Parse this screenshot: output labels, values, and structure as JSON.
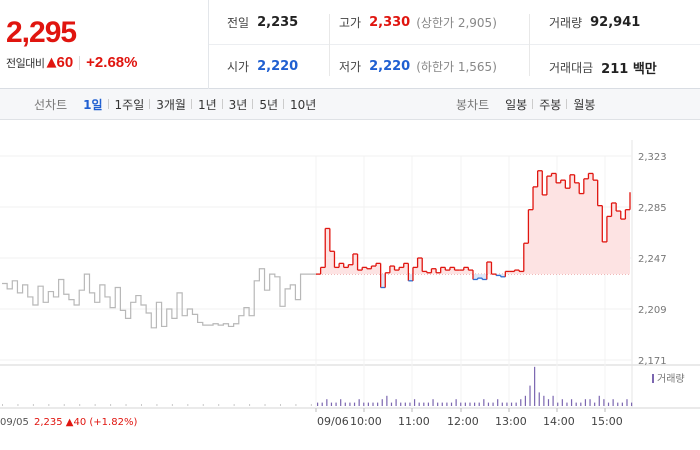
{
  "quote": {
    "current_price": "2,295",
    "change_label": "전일대비",
    "change_arrow": "▲",
    "change_value": "60",
    "change_pct": "+2.68%"
  },
  "stats": {
    "prev_close": {
      "label": "전일",
      "value": "2,235"
    },
    "high": {
      "label": "고가",
      "value": "2,330",
      "extra": "(상한가 2,905)"
    },
    "volume": {
      "label": "거래량",
      "value": "92,941"
    },
    "open": {
      "label": "시가",
      "value": "2,220"
    },
    "low": {
      "label": "저가",
      "value": "2,220",
      "extra": "(하한가 1,565)"
    },
    "trade_amount": {
      "label": "거래대금",
      "value": "211 백만"
    }
  },
  "tabs": {
    "line_label": "선차트",
    "line_periods": [
      "1일",
      "1주일",
      "3개월",
      "1년",
      "3년",
      "5년",
      "10년"
    ],
    "line_active": "1일",
    "candle_label": "봉차트",
    "candle_periods": [
      "일봉",
      "주봉",
      "월봉"
    ]
  },
  "chart_data": {
    "type": "line",
    "price_axis_ticks": [
      "2,323",
      "2,285",
      "2,247",
      "2,209",
      "2,171"
    ],
    "price_axis_values": [
      2323,
      2285,
      2247,
      2209,
      2171
    ],
    "time_labels": [
      "09/06",
      "10:00",
      "11:00",
      "12:00",
      "13:00",
      "14:00",
      "15:00"
    ],
    "prev_day_label": "09/05",
    "prev_day_info": "2,235 ▲40 (+1.82%)",
    "volume_legend": "거래량",
    "base_price": 2235,
    "colors": {
      "up": "#e0150f",
      "down": "#2d6fd1",
      "prev_day": "#b8b8b8",
      "volume": "#7b66b0"
    },
    "series": [
      {
        "name": "09/05",
        "y": [
          2228,
          2224,
          2230,
          2221,
          2227,
          2218,
          2212,
          2226,
          2214,
          2222,
          2218,
          2231,
          2220,
          2216,
          2212,
          2223,
          2235,
          2221,
          2214,
          2227,
          2218,
          2210,
          2225,
          2208,
          2202,
          2214,
          2219,
          2212,
          2206,
          2195,
          2214,
          2196,
          2209,
          2202,
          2221,
          2204,
          2209,
          2205,
          2199,
          2197,
          2197,
          2198,
          2197,
          2198,
          2196,
          2198,
          2204,
          2210,
          2204,
          2230,
          2239,
          2223,
          2235,
          2233,
          2211,
          2224,
          2227,
          2216,
          2235,
          2235,
          2235,
          2235
        ]
      },
      {
        "name": "09/06",
        "y": [
          2235,
          2240,
          2269,
          2252,
          2240,
          2243,
          2240,
          2242,
          2250,
          2238,
          2240,
          2239,
          2241,
          2243,
          2225,
          2236,
          2241,
          2238,
          2240,
          2243,
          2230,
          2240,
          2247,
          2237,
          2236,
          2239,
          2236,
          2240,
          2238,
          2240,
          2238,
          2238,
          2240,
          2238,
          2231,
          2232,
          2231,
          2244,
          2235,
          2234,
          2233,
          2237,
          2237,
          2238,
          2237,
          2258,
          2283,
          2300,
          2312,
          2294,
          2308,
          2310,
          2303,
          2305,
          2299,
          2309,
          2303,
          2295,
          2306,
          2310,
          2305,
          2286,
          2259,
          2278,
          2288,
          2282,
          2276,
          2283,
          2296
        ]
      }
    ],
    "volume": [
      1,
      1,
      2,
      1,
      1,
      2,
      1,
      1,
      1,
      2,
      1,
      1,
      1,
      1,
      2,
      3,
      1,
      2,
      1,
      1,
      1,
      2,
      1,
      1,
      1,
      2,
      1,
      1,
      1,
      1,
      2,
      1,
      1,
      1,
      1,
      1,
      2,
      1,
      1,
      2,
      1,
      1,
      1,
      1,
      2,
      3,
      6,
      16,
      4,
      3,
      2,
      3,
      1,
      2,
      1,
      2,
      1,
      1,
      2,
      2,
      1,
      3,
      2,
      1,
      2,
      1,
      1,
      2,
      1
    ]
  }
}
